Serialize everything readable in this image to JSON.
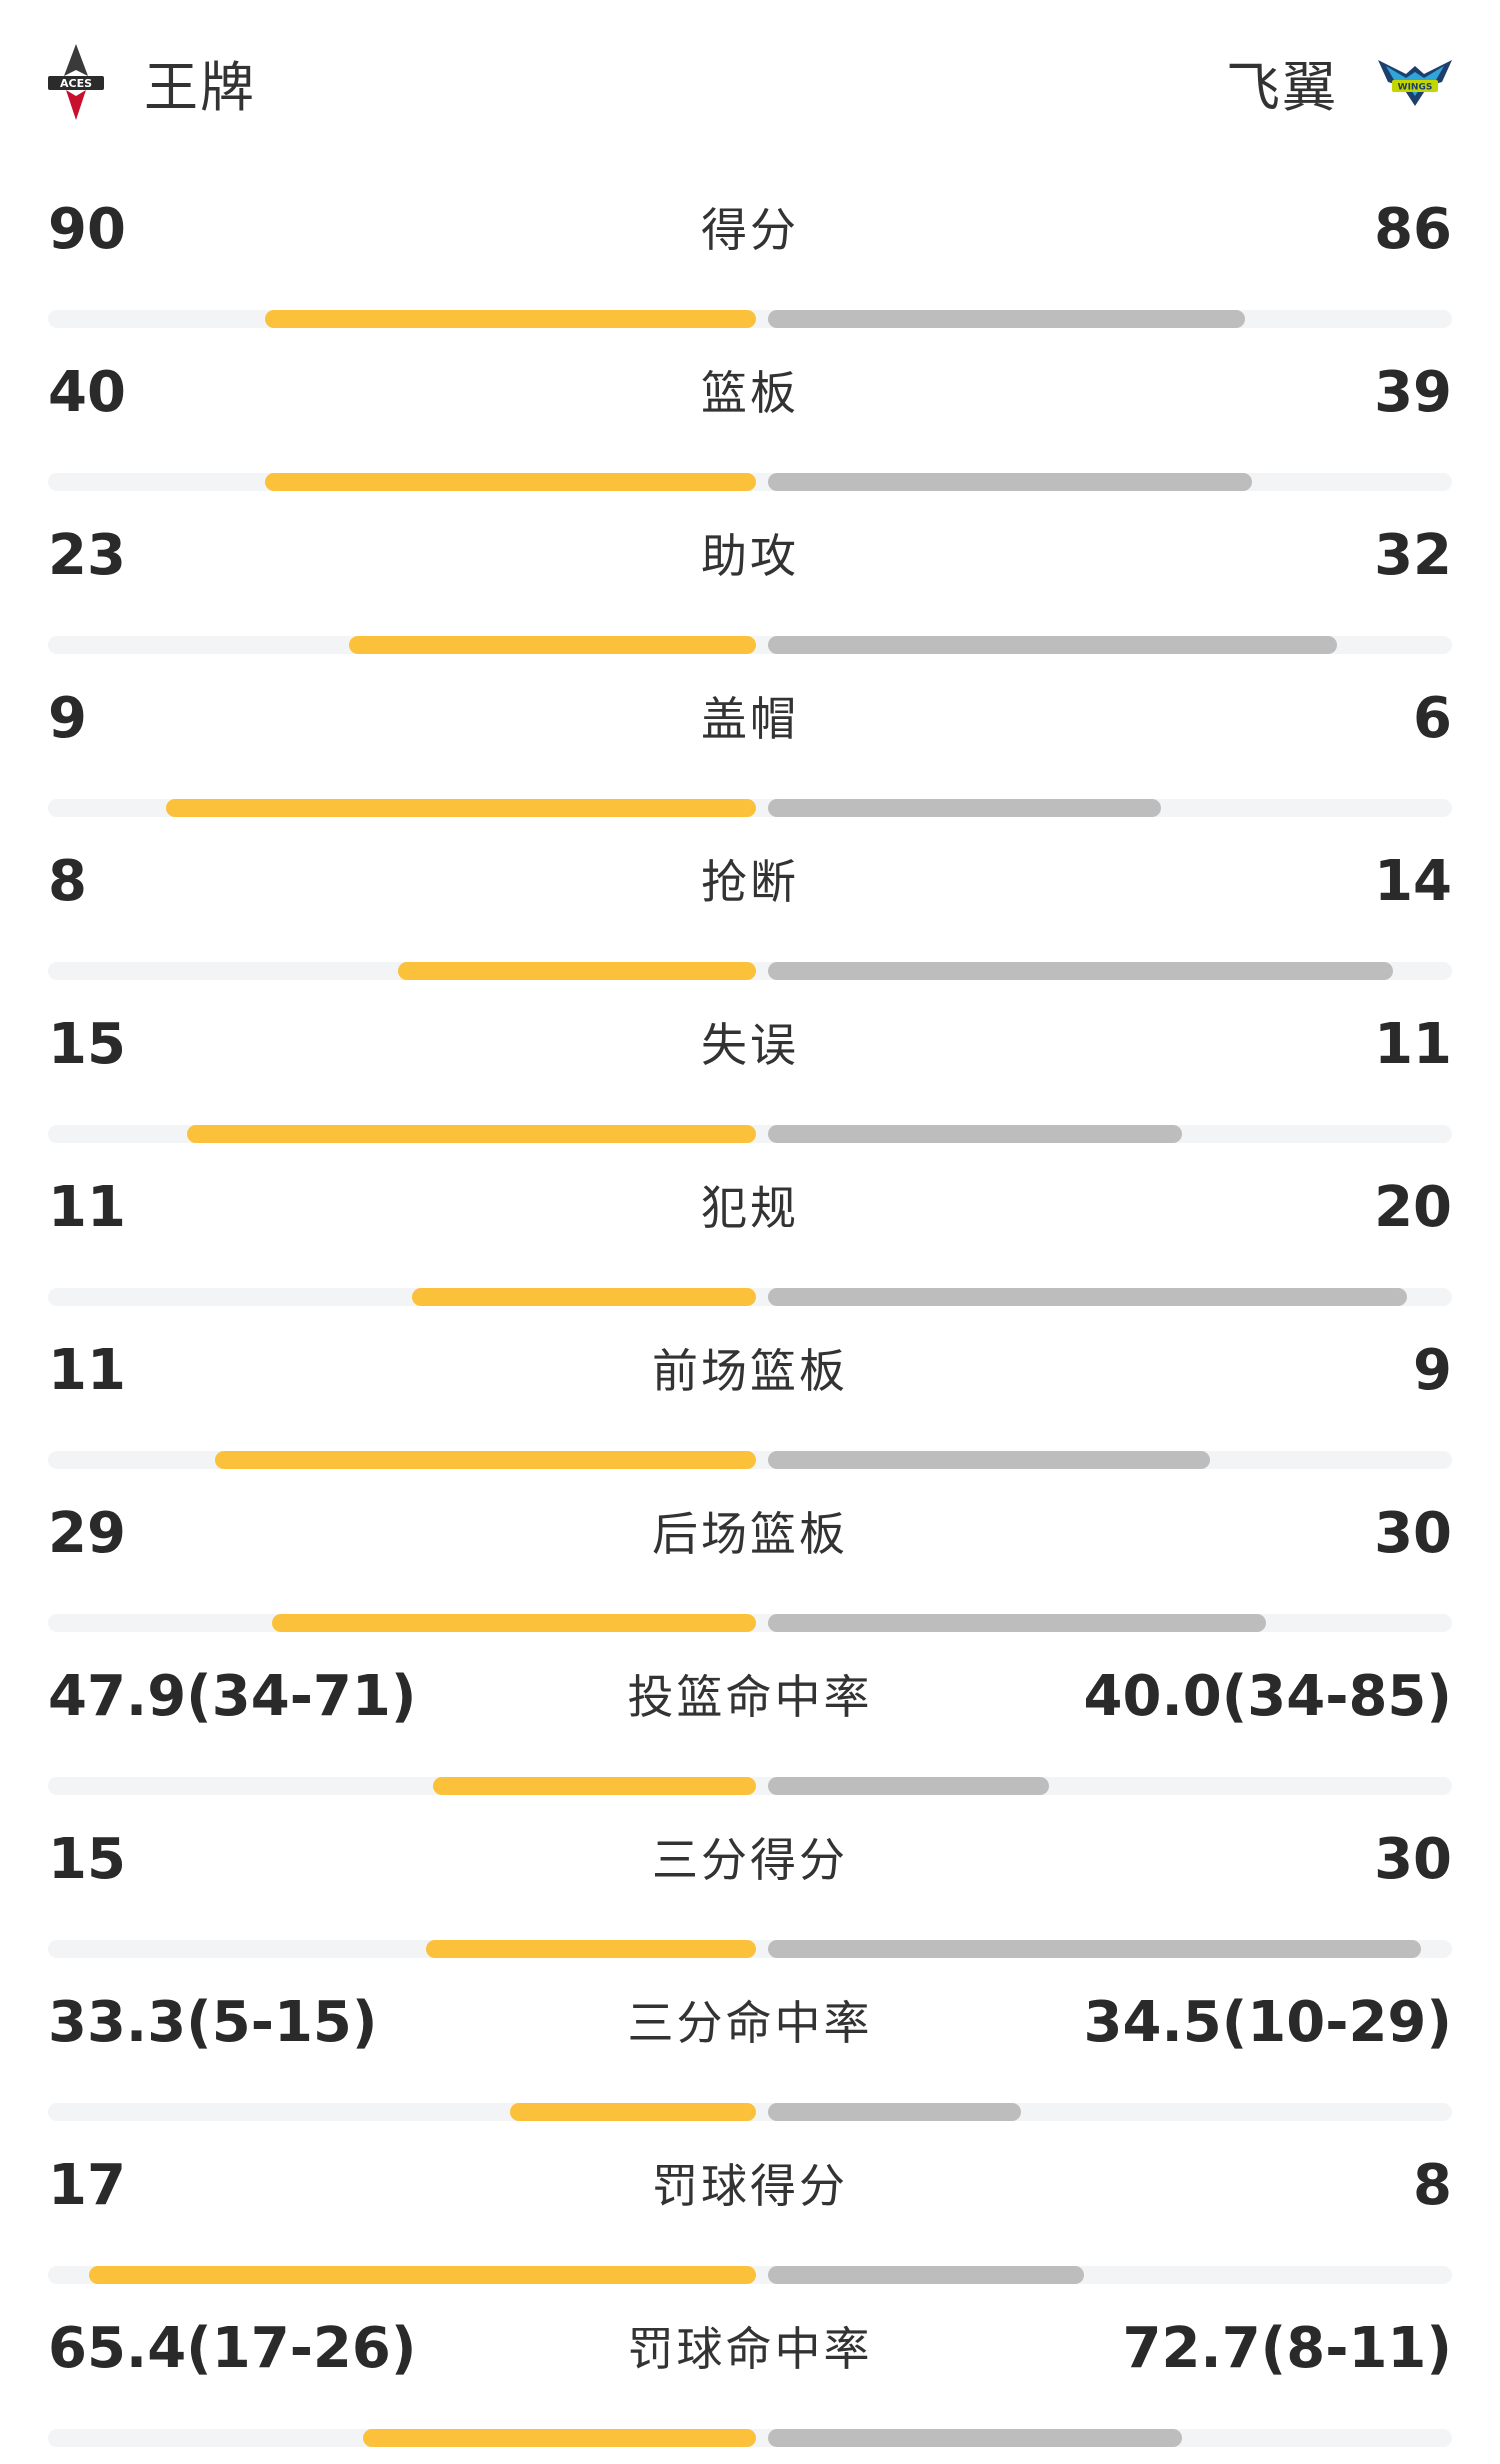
{
  "header": {
    "home_team": {
      "name": "王牌",
      "logo_icon": "aces-logo-icon",
      "logo_text": "ACES"
    },
    "away_team": {
      "name": "飞翼",
      "logo_icon": "wings-logo-icon",
      "logo_text": "WINGS"
    }
  },
  "colors": {
    "home_bar": "#fbc13a",
    "away_bar": "#bdbdbd",
    "track": "#f3f4f6"
  },
  "stats": [
    {
      "label": "得分",
      "home": "90",
      "away": "86",
      "home_share": 0.35,
      "away_share": 0.34
    },
    {
      "label": "篮板",
      "home": "40",
      "away": "39",
      "home_share": 0.35,
      "away_share": 0.345
    },
    {
      "label": "助攻",
      "home": "23",
      "away": "32",
      "home_share": 0.29,
      "away_share": 0.405
    },
    {
      "label": "盖帽",
      "home": "9",
      "away": "6",
      "home_share": 0.42,
      "away_share": 0.28
    },
    {
      "label": "抢断",
      "home": "8",
      "away": "14",
      "home_share": 0.255,
      "away_share": 0.445
    },
    {
      "label": "失误",
      "home": "15",
      "away": "11",
      "home_share": 0.405,
      "away_share": 0.295
    },
    {
      "label": "犯规",
      "home": "11",
      "away": "20",
      "home_share": 0.245,
      "away_share": 0.455
    },
    {
      "label": "前场篮板",
      "home": "11",
      "away": "9",
      "home_share": 0.385,
      "away_share": 0.315
    },
    {
      "label": "后场篮板",
      "home": "29",
      "away": "30",
      "home_share": 0.345,
      "away_share": 0.355
    },
    {
      "label": "投篮命中率",
      "home": "47.9(34-71)",
      "away": "40.0(34-85)",
      "home_share": 0.23,
      "away_share": 0.2
    },
    {
      "label": "三分得分",
      "home": "15",
      "away": "30",
      "home_share": 0.235,
      "away_share": 0.465
    },
    {
      "label": "三分命中率",
      "home": "33.3(5-15)",
      "away": "34.5(10-29)",
      "home_share": 0.175,
      "away_share": 0.18
    },
    {
      "label": "罚球得分",
      "home": "17",
      "away": "8",
      "home_share": 0.475,
      "away_share": 0.225
    },
    {
      "label": "罚球命中率",
      "home": "65.4(17-26)",
      "away": "72.7(8-11)",
      "home_share": 0.28,
      "away_share": 0.295
    }
  ]
}
